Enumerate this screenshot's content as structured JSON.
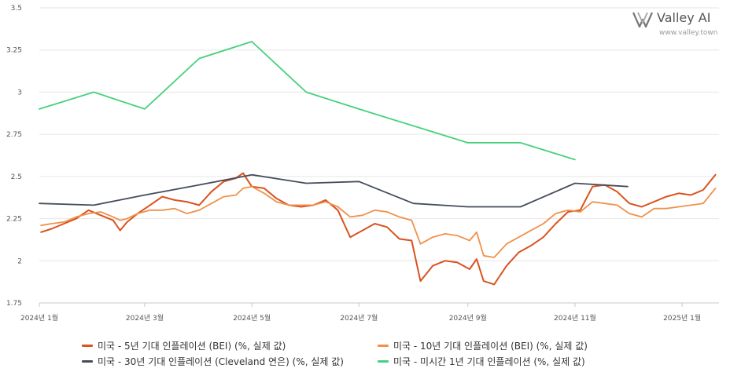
{
  "brand": {
    "name": "Valley AI",
    "url": "www.valley.town",
    "logo_icon": "valley-ai-logo-icon"
  },
  "chart_data": {
    "type": "line",
    "title": "",
    "xlabel": "",
    "ylabel": "",
    "ylim": [
      1.75,
      3.5
    ],
    "y_ticks": [
      1.75,
      2,
      2.25,
      2.5,
      2.75,
      3,
      3.25,
      3.5
    ],
    "y_tick_labels": [
      "1.75",
      "2",
      "2.25",
      "2.5",
      "2.75",
      "3",
      "3.25",
      "3.5"
    ],
    "xlim": [
      "2024-01-01",
      "2025-01-22"
    ],
    "x_ticks": [
      "2024-01-01",
      "2024-03-01",
      "2024-05-01",
      "2024-07-01",
      "2024-09-01",
      "2024-11-01",
      "2025-01-01"
    ],
    "x_tick_labels": [
      "2024년 1월",
      "2024년 3월",
      "2024년 5월",
      "2024년 7월",
      "2024년 9월",
      "2024년 11월",
      "2025년 1월"
    ],
    "grid": true,
    "legend_position": "bottom",
    "series": [
      {
        "name": "미국 - 5년 기대 인플레이션 (BEI) (%, 실제 값)",
        "color": "#d9531e",
        "x": [
          "2024-01-02",
          "2024-01-08",
          "2024-01-15",
          "2024-01-22",
          "2024-01-29",
          "2024-02-05",
          "2024-02-12",
          "2024-02-16",
          "2024-02-20",
          "2024-02-26",
          "2024-03-04",
          "2024-03-11",
          "2024-03-18",
          "2024-03-25",
          "2024-04-01",
          "2024-04-08",
          "2024-04-15",
          "2024-04-22",
          "2024-04-26",
          "2024-05-01",
          "2024-05-08",
          "2024-05-15",
          "2024-05-22",
          "2024-05-29",
          "2024-06-05",
          "2024-06-12",
          "2024-06-19",
          "2024-06-26",
          "2024-07-03",
          "2024-07-10",
          "2024-07-17",
          "2024-07-24",
          "2024-07-31",
          "2024-08-05",
          "2024-08-12",
          "2024-08-19",
          "2024-08-26",
          "2024-09-02",
          "2024-09-06",
          "2024-09-10",
          "2024-09-16",
          "2024-09-23",
          "2024-09-30",
          "2024-10-07",
          "2024-10-14",
          "2024-10-21",
          "2024-10-28",
          "2024-11-04",
          "2024-11-11",
          "2024-11-18",
          "2024-11-25",
          "2024-12-02",
          "2024-12-09",
          "2024-12-16",
          "2024-12-23",
          "2024-12-30",
          "2025-01-06",
          "2025-01-13",
          "2025-01-20"
        ],
        "values": [
          2.17,
          2.19,
          2.22,
          2.25,
          2.3,
          2.27,
          2.24,
          2.18,
          2.23,
          2.28,
          2.33,
          2.38,
          2.36,
          2.35,
          2.33,
          2.41,
          2.47,
          2.49,
          2.52,
          2.44,
          2.43,
          2.37,
          2.33,
          2.32,
          2.33,
          2.36,
          2.3,
          2.14,
          2.18,
          2.22,
          2.2,
          2.13,
          2.12,
          1.88,
          1.97,
          2.0,
          1.99,
          1.95,
          2.01,
          1.88,
          1.86,
          1.97,
          2.05,
          2.09,
          2.14,
          2.22,
          2.29,
          2.3,
          2.44,
          2.45,
          2.41,
          2.34,
          2.32,
          2.35,
          2.38,
          2.4,
          2.39,
          2.42,
          2.51
        ]
      },
      {
        "name": "미국 - 10년 기대 인플레이션 (BEI) (%, 실제 값)",
        "color": "#f0914b",
        "x": [
          "2024-01-02",
          "2024-01-08",
          "2024-01-15",
          "2024-01-22",
          "2024-01-29",
          "2024-02-05",
          "2024-02-12",
          "2024-02-16",
          "2024-02-20",
          "2024-02-26",
          "2024-03-04",
          "2024-03-11",
          "2024-03-18",
          "2024-03-25",
          "2024-04-01",
          "2024-04-08",
          "2024-04-15",
          "2024-04-22",
          "2024-04-26",
          "2024-05-01",
          "2024-05-08",
          "2024-05-15",
          "2024-05-22",
          "2024-05-29",
          "2024-06-05",
          "2024-06-12",
          "2024-06-19",
          "2024-06-26",
          "2024-07-03",
          "2024-07-10",
          "2024-07-17",
          "2024-07-24",
          "2024-07-31",
          "2024-08-05",
          "2024-08-12",
          "2024-08-19",
          "2024-08-26",
          "2024-09-02",
          "2024-09-06",
          "2024-09-10",
          "2024-09-16",
          "2024-09-23",
          "2024-09-30",
          "2024-10-07",
          "2024-10-14",
          "2024-10-21",
          "2024-10-28",
          "2024-11-04",
          "2024-11-11",
          "2024-11-18",
          "2024-11-25",
          "2024-12-02",
          "2024-12-09",
          "2024-12-16",
          "2024-12-23",
          "2024-12-30",
          "2025-01-06",
          "2025-01-13",
          "2025-01-20"
        ],
        "values": [
          2.21,
          2.22,
          2.23,
          2.26,
          2.28,
          2.29,
          2.26,
          2.24,
          2.25,
          2.28,
          2.3,
          2.3,
          2.31,
          2.28,
          2.3,
          2.34,
          2.38,
          2.39,
          2.43,
          2.44,
          2.4,
          2.35,
          2.33,
          2.33,
          2.33,
          2.35,
          2.32,
          2.26,
          2.27,
          2.3,
          2.29,
          2.26,
          2.24,
          2.1,
          2.14,
          2.16,
          2.15,
          2.12,
          2.17,
          2.03,
          2.02,
          2.1,
          2.14,
          2.18,
          2.22,
          2.28,
          2.3,
          2.29,
          2.35,
          2.34,
          2.33,
          2.28,
          2.26,
          2.31,
          2.31,
          2.32,
          2.33,
          2.34,
          2.43
        ]
      },
      {
        "name": "미국 - 30년 기대 인플레이션 (Cleveland 연은) (%, 실제 값)",
        "color": "#454d5a",
        "x": [
          "2024-01-01",
          "2024-02-01",
          "2024-03-01",
          "2024-04-01",
          "2024-05-01",
          "2024-06-01",
          "2024-07-01",
          "2024-08-01",
          "2024-09-01",
          "2024-10-01",
          "2024-11-01",
          "2024-12-01"
        ],
        "values": [
          2.34,
          2.33,
          2.39,
          2.45,
          2.51,
          2.46,
          2.47,
          2.34,
          2.32,
          2.32,
          2.46,
          2.44
        ]
      },
      {
        "name": "미국 - 미시간 1년 기대 인플레이션 (%, 실제 값)",
        "color": "#45d17c",
        "x": [
          "2024-01-01",
          "2024-02-01",
          "2024-03-01",
          "2024-04-01",
          "2024-05-01",
          "2024-06-01",
          "2024-07-01",
          "2024-08-01",
          "2024-09-01",
          "2024-10-01",
          "2024-11-01"
        ],
        "values": [
          2.9,
          3.0,
          2.9,
          3.2,
          3.3,
          3.0,
          2.9,
          2.8,
          2.7,
          2.7,
          2.6
        ]
      }
    ]
  }
}
